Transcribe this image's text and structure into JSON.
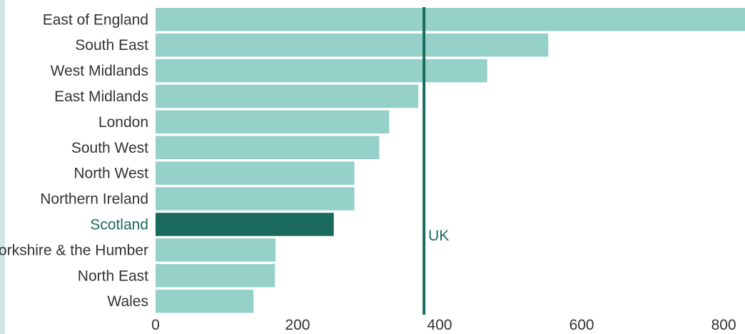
{
  "chart_data": {
    "type": "bar",
    "orientation": "horizontal",
    "categories": [
      "East of England",
      "South East",
      "West Midlands",
      "East Midlands",
      "London",
      "South West",
      "North West",
      "Northern Ireland",
      "Scotland",
      "Yorkshire & the Humber",
      "North East",
      "Wales"
    ],
    "values": [
      830,
      553,
      467,
      370,
      329,
      315,
      280,
      280,
      251,
      169,
      168,
      138
    ],
    "highlight": "Scotland",
    "xlim": [
      0,
      830
    ],
    "xticks": [
      0,
      200,
      400,
      600,
      800
    ],
    "reference_line": {
      "label": "UK",
      "value": 378
    },
    "colors": {
      "bar": "#96d1c9",
      "highlight": "#1b6a5e",
      "reference": "#1b6a5e",
      "strip": "#d3e8e5"
    },
    "grid": false
  }
}
